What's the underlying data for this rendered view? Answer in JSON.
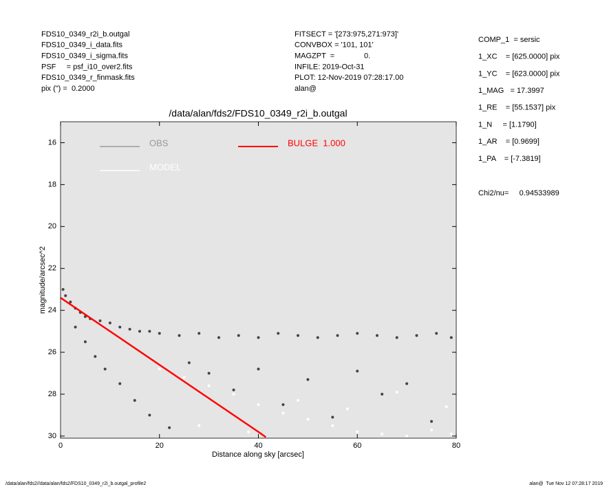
{
  "header": {
    "left": [
      "FDS10_0349_r2i_b.outgal",
      "FDS10_0349_i_data.fits",
      "FDS10_0349_i_sigma.fits",
      "PSF     = psf_i10_over2.fits",
      "FDS10_0349_r_finmask.fits",
      "pix (\") =  0.2000"
    ],
    "center": [
      "FITSECT = '[273:975,271:973]'",
      "CONVBOX = '101, 101'",
      "MAGZPT  =              0.",
      "INFILE: 2019-Oct-31",
      "PLOT: 12-Nov-2019 07:28:17.00",
      "alan@"
    ],
    "right": [
      "COMP_1  = sersic",
      "1_XC    = [625.0000] pix",
      "1_YC    = [623.0000] pix",
      "1_MAG   = 17.3997",
      "1_RE    = [55.1537] pix",
      "1_N     = [1.1790]",
      "1_AR    = [0.9699]",
      "1_PA    = [-7.3819]"
    ],
    "chi2": "Chi2/nu=     0.94533989"
  },
  "footer": {
    "left": "/data/alan/fds2//data/alan/fds2/FDS10_0349_r2i_b.outgal_profile2",
    "right": "alan@  Tue Nov 12 07:28:17 2019"
  },
  "chart_data": {
    "type": "scatter",
    "title": "/data/alan/fds2/FDS10_0349_r2i_b.outgal",
    "x_label": "Distance along sky [arcsec]",
    "y_label": "magnitude/arcsec^2",
    "xlim": [
      0,
      80
    ],
    "xticks": [
      0,
      20,
      40,
      60,
      80
    ],
    "ylim": [
      30.1,
      15
    ],
    "yticks": [
      16,
      18,
      20,
      22,
      24,
      26,
      28,
      30
    ],
    "background": "#e5e5e5",
    "series": [
      {
        "name": "OBS",
        "color": "#444444",
        "legend_color": "#999999",
        "x": [
          0.5,
          1,
          2,
          3,
          4,
          5,
          6,
          8,
          10,
          12,
          14,
          16,
          18,
          20,
          24,
          28,
          32,
          36,
          40,
          44,
          48,
          52,
          56,
          60,
          64,
          68,
          72,
          76,
          79,
          3,
          5,
          7,
          9,
          12,
          15,
          18,
          22,
          26,
          30,
          35,
          40,
          45,
          50,
          55,
          60,
          65,
          70,
          75
        ],
        "values": [
          23.0,
          23.3,
          23.6,
          23.9,
          24.1,
          24.3,
          24.4,
          24.5,
          24.6,
          24.8,
          24.9,
          25.0,
          25.0,
          25.1,
          25.2,
          25.1,
          25.3,
          25.2,
          25.3,
          25.1,
          25.2,
          25.3,
          25.2,
          25.1,
          25.2,
          25.3,
          25.2,
          25.1,
          25.3,
          24.8,
          25.5,
          26.2,
          26.8,
          27.5,
          28.3,
          29.0,
          29.6,
          26.5,
          27.0,
          27.8,
          26.8,
          28.5,
          27.3,
          29.1,
          26.9,
          28.0,
          27.5,
          29.3
        ]
      },
      {
        "name": "MODEL",
        "color": "#ffffff",
        "legend_color": "#ffffff",
        "x": [
          20,
          25,
          30,
          35,
          40,
          45,
          50,
          55,
          60,
          65,
          70,
          75,
          79,
          28,
          38,
          48,
          58,
          68,
          78
        ],
        "values": [
          26.8,
          27.2,
          27.6,
          28.0,
          28.5,
          28.9,
          29.2,
          29.5,
          29.8,
          29.9,
          30.0,
          29.7,
          29.9,
          29.5,
          29.8,
          28.3,
          28.7,
          27.9,
          28.6
        ]
      },
      {
        "name": "BULGE  1.000",
        "color": "#ff0000",
        "legend_color": "#ff0000",
        "line": true,
        "x": [
          0,
          5,
          10,
          15,
          20,
          25,
          30,
          35,
          40,
          41.5
        ],
        "values": [
          23.4,
          24.2,
          25.0,
          25.8,
          26.6,
          27.4,
          28.2,
          29.0,
          29.8,
          30.05
        ]
      }
    ]
  }
}
